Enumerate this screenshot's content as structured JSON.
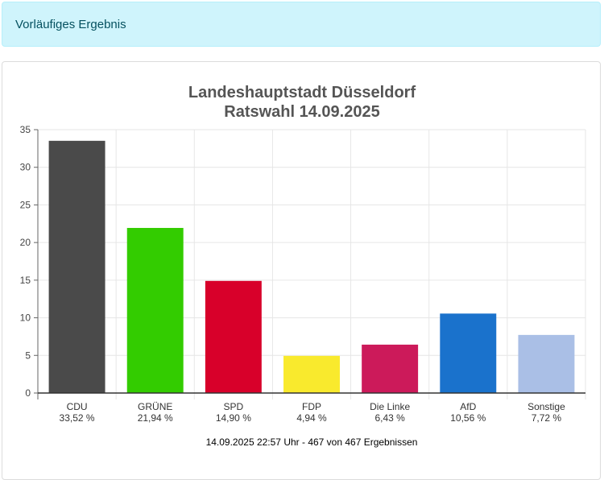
{
  "alert": {
    "text": "Vorläufiges Ergebnis"
  },
  "chart_data": {
    "type": "bar",
    "title": [
      "Landeshauptstadt Düsseldorf",
      "Ratswahl 14.09.2025"
    ],
    "categories": [
      "CDU",
      "GRÜNE",
      "SPD",
      "FDP",
      "Die Linke",
      "AfD",
      "Sonstige"
    ],
    "values": [
      33.52,
      21.94,
      14.9,
      4.94,
      6.43,
      10.56,
      7.72
    ],
    "value_labels": [
      "33,52 %",
      "21,94 %",
      "14,90 %",
      "4,94 %",
      "6,43 %",
      "10,56 %",
      "7,72 %"
    ],
    "colors": [
      "#4a4a4a",
      "#33cc00",
      "#d8002a",
      "#f9ea2d",
      "#cc1a5a",
      "#1a72cc",
      "#aabfe6"
    ],
    "yticks": [
      0,
      5,
      10,
      15,
      20,
      25,
      30,
      35
    ],
    "ylim": [
      0,
      35
    ],
    "xlabel": "",
    "ylabel": "",
    "grid": true,
    "footer": "14.09.2025 22:57 Uhr - 467 von 467 Ergebnissen"
  }
}
